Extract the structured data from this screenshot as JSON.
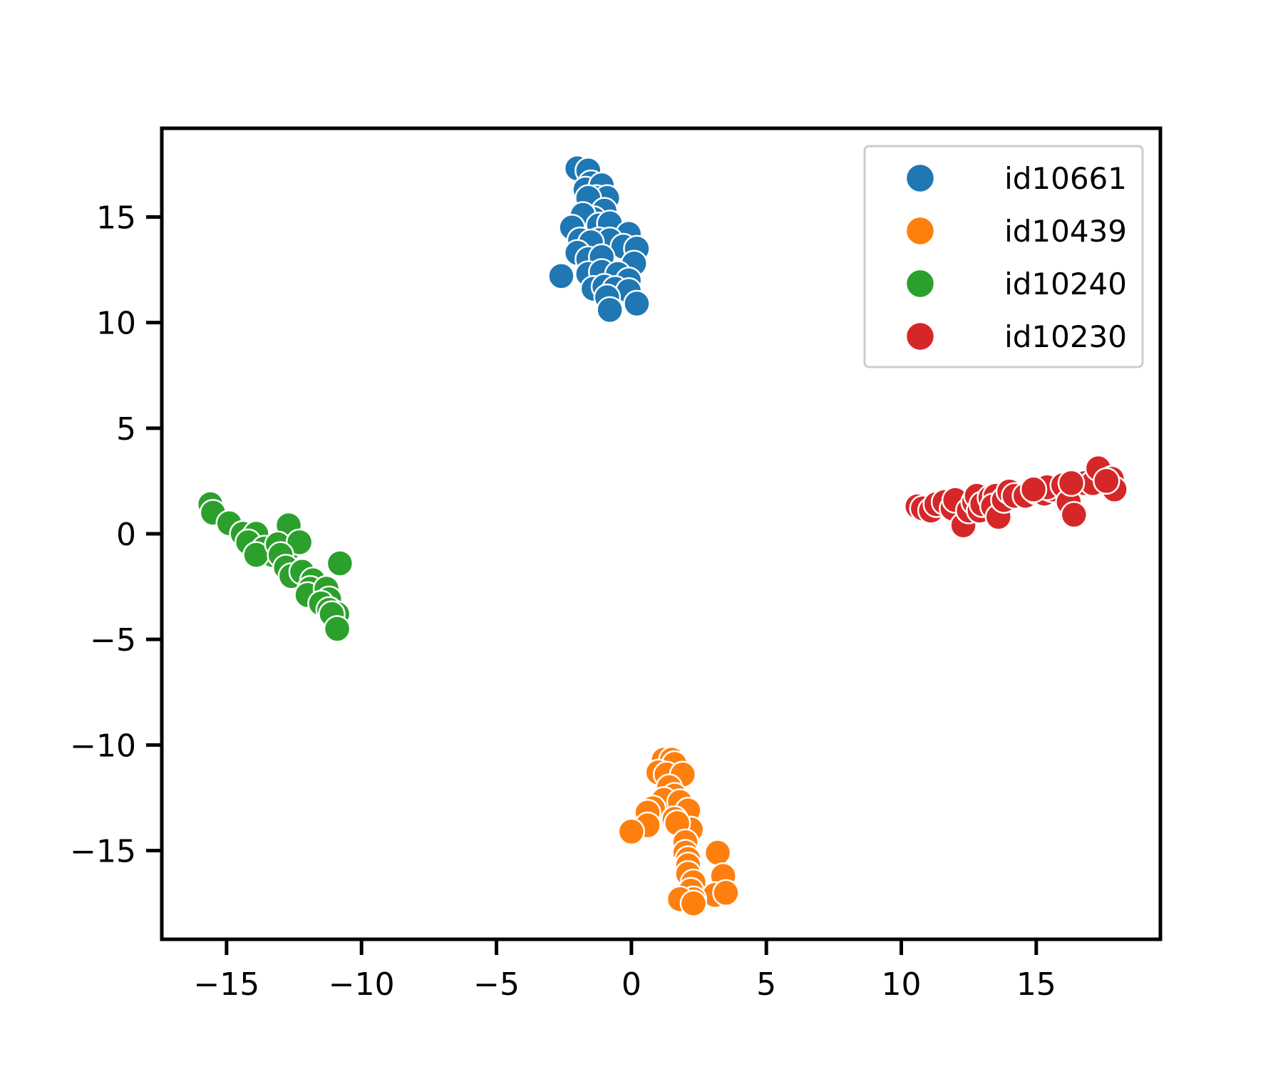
{
  "chart_data": {
    "type": "scatter",
    "title": "",
    "xlabel": "",
    "ylabel": "",
    "xlim": [
      -17.4,
      19.6
    ],
    "ylim": [
      -19.2,
      19.2
    ],
    "xticks": [
      -15,
      -10,
      -5,
      0,
      5,
      10,
      15
    ],
    "yticks": [
      -15,
      -10,
      -5,
      0,
      5,
      10,
      15
    ],
    "xtick_labels": [
      "−15",
      "−10",
      "−5",
      "0",
      "5",
      "10",
      "15"
    ],
    "ytick_labels": [
      "−15",
      "−10",
      "−5",
      "0",
      "5",
      "10",
      "15"
    ],
    "grid": false,
    "legend_position": "top-right",
    "series": [
      {
        "name": "id10661",
        "color": "#1f77b4",
        "points": [
          [
            -2.0,
            17.3
          ],
          [
            -1.6,
            17.2
          ],
          [
            -1.5,
            16.6
          ],
          [
            -1.7,
            16.3
          ],
          [
            -1.1,
            16.5
          ],
          [
            -1.3,
            15.9
          ],
          [
            -0.9,
            15.9
          ],
          [
            -1.6,
            15.9
          ],
          [
            -1.0,
            15.3
          ],
          [
            -1.4,
            14.9
          ],
          [
            -1.8,
            15.1
          ],
          [
            -2.2,
            14.5
          ],
          [
            -1.2,
            14.6
          ],
          [
            -0.8,
            14.7
          ],
          [
            -0.1,
            14.2
          ],
          [
            -1.9,
            13.9
          ],
          [
            -1.2,
            13.9
          ],
          [
            -0.9,
            13.7
          ],
          [
            -0.8,
            13.9
          ],
          [
            -1.5,
            13.8
          ],
          [
            -0.3,
            13.6
          ],
          [
            0.2,
            13.5
          ],
          [
            0.1,
            12.8
          ],
          [
            -2.0,
            13.3
          ],
          [
            -1.6,
            13.0
          ],
          [
            -1.1,
            13.1
          ],
          [
            -1.6,
            12.3
          ],
          [
            -1.1,
            12.4
          ],
          [
            -0.5,
            12.3
          ],
          [
            -2.6,
            12.2
          ],
          [
            -0.1,
            12.0
          ],
          [
            -1.4,
            11.6
          ],
          [
            -1.0,
            11.7
          ],
          [
            -0.6,
            11.6
          ],
          [
            -0.1,
            11.5
          ],
          [
            -0.9,
            11.2
          ],
          [
            0.2,
            10.9
          ],
          [
            -0.8,
            10.6
          ]
        ]
      },
      {
        "name": "id10439",
        "color": "#ff7f0e",
        "points": [
          [
            1.2,
            -10.7
          ],
          [
            1.5,
            -10.7
          ],
          [
            1.6,
            -10.9
          ],
          [
            1.0,
            -11.3
          ],
          [
            1.3,
            -11.4
          ],
          [
            1.9,
            -11.4
          ],
          [
            1.4,
            -12.0
          ],
          [
            1.6,
            -12.4
          ],
          [
            1.2,
            -12.6
          ],
          [
            1.8,
            -12.7
          ],
          [
            0.8,
            -13.0
          ],
          [
            2.1,
            -13.1
          ],
          [
            0.6,
            -13.2
          ],
          [
            0.6,
            -13.8
          ],
          [
            1.6,
            -13.5
          ],
          [
            2.2,
            -14.0
          ],
          [
            0.0,
            -14.1
          ],
          [
            1.7,
            -13.7
          ],
          [
            2.0,
            -14.6
          ],
          [
            2.0,
            -15.1
          ],
          [
            3.2,
            -15.1
          ],
          [
            2.1,
            -15.4
          ],
          [
            2.1,
            -15.7
          ],
          [
            2.1,
            -16.1
          ],
          [
            3.4,
            -16.2
          ],
          [
            2.3,
            -16.5
          ],
          [
            2.2,
            -16.9
          ],
          [
            3.1,
            -17.1
          ],
          [
            3.5,
            -17.0
          ],
          [
            2.3,
            -17.3
          ],
          [
            1.8,
            -17.3
          ],
          [
            2.3,
            -17.5
          ]
        ]
      },
      {
        "name": "id10240",
        "color": "#2ca02c",
        "points": [
          [
            -15.6,
            1.4
          ],
          [
            -15.5,
            1.0
          ],
          [
            -14.9,
            0.5
          ],
          [
            -14.4,
            0.0
          ],
          [
            -14.1,
            -0.3
          ],
          [
            -13.9,
            0.0
          ],
          [
            -14.2,
            -0.4
          ],
          [
            -13.6,
            -0.7
          ],
          [
            -13.3,
            -1.0
          ],
          [
            -13.9,
            -1.0
          ],
          [
            -13.0,
            -0.8
          ],
          [
            -12.7,
            0.4
          ],
          [
            -12.7,
            -0.7
          ],
          [
            -13.1,
            -0.5
          ],
          [
            -12.3,
            -0.4
          ],
          [
            -13.0,
            -1.0
          ],
          [
            -12.8,
            -1.6
          ],
          [
            -12.6,
            -2.0
          ],
          [
            -12.2,
            -1.8
          ],
          [
            -11.8,
            -2.2
          ],
          [
            -11.9,
            -2.6
          ],
          [
            -12.0,
            -2.9
          ],
          [
            -11.3,
            -2.6
          ],
          [
            -11.2,
            -3.1
          ],
          [
            -11.5,
            -3.3
          ],
          [
            -11.2,
            -3.6
          ],
          [
            -10.9,
            -3.8
          ],
          [
            -11.1,
            -3.8
          ],
          [
            -10.9,
            -4.5
          ],
          [
            -10.8,
            -1.4
          ]
        ]
      },
      {
        "name": "id10230",
        "color": "#d62728",
        "points": [
          [
            10.6,
            1.3
          ],
          [
            10.8,
            1.2
          ],
          [
            11.1,
            1.1
          ],
          [
            11.3,
            1.4
          ],
          [
            11.6,
            1.5
          ],
          [
            11.9,
            1.2
          ],
          [
            12.0,
            1.6
          ],
          [
            12.3,
            0.4
          ],
          [
            12.5,
            1.1
          ],
          [
            12.7,
            1.5
          ],
          [
            12.8,
            1.8
          ],
          [
            12.9,
            1.1
          ],
          [
            13.0,
            1.4
          ],
          [
            13.3,
            1.7
          ],
          [
            13.5,
            1.8
          ],
          [
            13.4,
            1.3
          ],
          [
            13.6,
            0.8
          ],
          [
            13.8,
            1.6
          ],
          [
            14.0,
            2.0
          ],
          [
            14.2,
            1.8
          ],
          [
            14.6,
            1.8
          ],
          [
            15.0,
            2.0
          ],
          [
            15.3,
            1.9
          ],
          [
            15.6,
            2.1
          ],
          [
            15.4,
            2.2
          ],
          [
            16.0,
            2.3
          ],
          [
            16.2,
            1.5
          ],
          [
            16.4,
            0.9
          ],
          [
            16.8,
            2.4
          ],
          [
            17.1,
            2.4
          ],
          [
            17.3,
            3.1
          ],
          [
            17.8,
            2.6
          ],
          [
            17.9,
            2.1
          ],
          [
            17.6,
            2.5
          ],
          [
            16.3,
            2.4
          ],
          [
            14.9,
            2.1
          ]
        ]
      }
    ]
  }
}
